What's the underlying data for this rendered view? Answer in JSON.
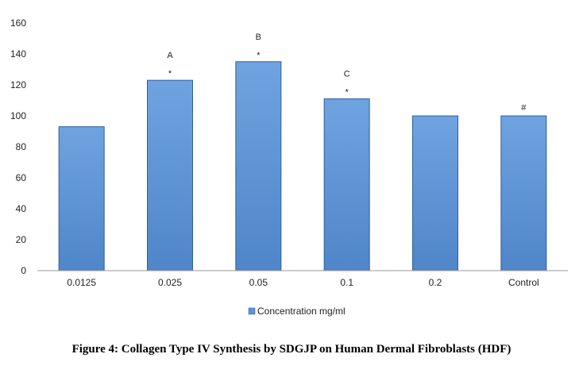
{
  "caption": "Figure 4: Collagen Type IV Synthesis by SDGJP on Human Dermal Fibroblasts (HDF)",
  "chart_data": {
    "type": "bar",
    "categories": [
      "0.0125",
      "0.025",
      "0.05",
      "0.1",
      "0.2",
      "Control"
    ],
    "series": [
      {
        "name": "Concentration mg/ml",
        "values": [
          93,
          123,
          135,
          111,
          100,
          100
        ]
      }
    ],
    "ylim": [
      0,
      160
    ],
    "yticks": [
      0,
      20,
      40,
      60,
      80,
      100,
      120,
      140,
      160
    ],
    "annotations": [
      {
        "category": "0.025",
        "letter": "A",
        "marker": "*"
      },
      {
        "category": "0.05",
        "letter": "B",
        "marker": "*"
      },
      {
        "category": "0.1",
        "letter": "C",
        "marker": "*"
      },
      {
        "category": "Control",
        "letter": "",
        "marker": "#"
      }
    ],
    "grid": false,
    "legend_position": "bottom",
    "bar_color": "#5b93d3"
  }
}
